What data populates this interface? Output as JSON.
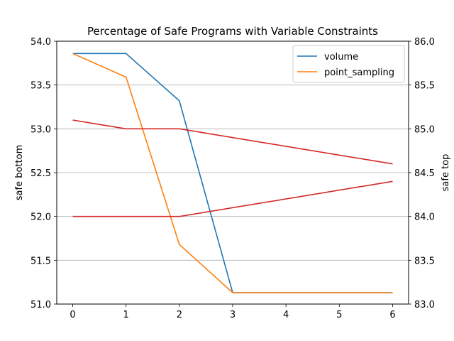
{
  "chart_data": {
    "type": "line",
    "title": "Percentage of Safe Programs with Variable Constraints",
    "xlabel": "",
    "ylabel_left": "safe bottom",
    "ylabel_right": "safe top",
    "x_ticks": [
      0,
      1,
      2,
      3,
      4,
      5,
      6
    ],
    "xlim": [
      -0.3,
      6.3
    ],
    "ylim_left": [
      51.0,
      54.0
    ],
    "ylim_right": [
      83.0,
      86.0
    ],
    "y_ticks_left": [
      "51.0",
      "51.5",
      "52.0",
      "52.5",
      "53.0",
      "53.5",
      "54.0"
    ],
    "y_ticks_right": [
      "83.0",
      "83.5",
      "84.0",
      "84.5",
      "85.0",
      "85.5",
      "86.0"
    ],
    "grid": "horizontal",
    "legend_position": "top-right",
    "series": [
      {
        "name": "volume",
        "axis": "left",
        "color": "#1f77b4",
        "points": [
          [
            0,
            53.86
          ],
          [
            1,
            53.86
          ],
          [
            2,
            53.32
          ],
          [
            3,
            51.13
          ],
          [
            4,
            51.13
          ],
          [
            5,
            51.13
          ],
          [
            6,
            51.13
          ]
        ]
      },
      {
        "name": "point_sampling",
        "axis": "left",
        "color": "#ff7f0e",
        "points": [
          [
            0,
            53.86
          ],
          [
            1,
            53.59
          ],
          [
            2,
            51.68
          ],
          [
            3,
            51.13
          ],
          [
            4,
            51.13
          ],
          [
            5,
            51.13
          ],
          [
            6,
            51.13
          ]
        ]
      },
      {
        "axis": "left",
        "color": "#d62728",
        "points": [
          [
            0,
            53.1
          ],
          [
            1,
            53.0
          ],
          [
            2,
            53.0
          ],
          [
            6,
            52.6
          ]
        ]
      },
      {
        "axis": "left",
        "color": "#d62728",
        "points": [
          [
            0,
            52.0
          ],
          [
            2,
            52.0
          ],
          [
            6,
            52.4
          ]
        ]
      }
    ]
  }
}
